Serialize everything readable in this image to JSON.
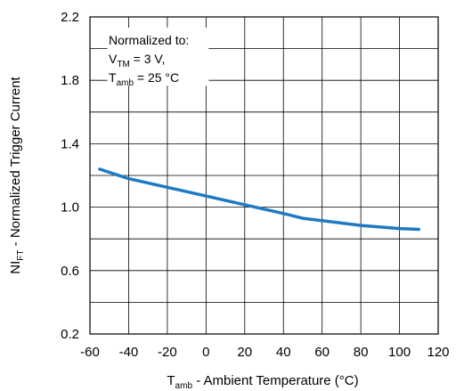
{
  "chart_data": {
    "type": "line",
    "xlabel": {
      "main": "T",
      "sub": "amb",
      "rest": " - Ambient Temperature (°C)"
    },
    "ylabel": {
      "main": "NI",
      "sub": "FT",
      "rest": " - Normalized Trigger Current"
    },
    "xlim": [
      -60,
      120
    ],
    "ylim": [
      0.2,
      2.2
    ],
    "x_ticks": [
      -60,
      -40,
      -20,
      0,
      20,
      40,
      60,
      80,
      100,
      120
    ],
    "y_ticks": [
      "0.2",
      "0.6",
      "1.0",
      "1.4",
      "1.8",
      "2.2"
    ],
    "grid": true,
    "annotation": {
      "line1": "Normalized to:",
      "line2": {
        "main": "V",
        "sub": "TM",
        "rest": " = 3 V,"
      },
      "line3": {
        "main": "T",
        "sub": "amb",
        "rest": " = 25 °C"
      }
    },
    "series": [
      {
        "color": "#1f7ac2",
        "x": [
          -55,
          -40,
          -20,
          0,
          20,
          40,
          50,
          60,
          80,
          100,
          110
        ],
        "y": [
          1.24,
          1.18,
          1.125,
          1.07,
          1.015,
          0.96,
          0.93,
          0.915,
          0.885,
          0.865,
          0.86
        ]
      }
    ]
  }
}
